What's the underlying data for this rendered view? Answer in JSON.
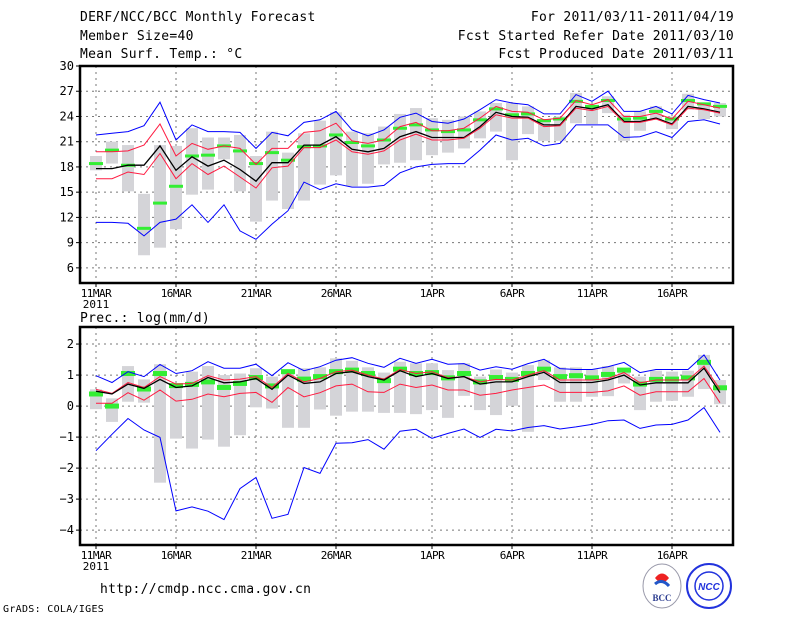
{
  "header": {
    "title": "DERF/NCC/BCC Monthly Forecast",
    "member_size": "Member Size=40",
    "variable": "Mean Surf. Temp.: °C",
    "period": "For 2011/03/11-2011/04/19",
    "start_date": "Fcst Started Refer Date 2011/03/10",
    "produced_date": "Fcst Produced Date 2011/03/11"
  },
  "footer": {
    "url": "http://cmdp.ncc.cma.gov.cn",
    "credit": "GrADS: COLA/IGES",
    "logos": [
      "BCC",
      "NCC"
    ]
  },
  "colors": {
    "blue": "#0000ff",
    "red": "#ff1a40",
    "black": "#000000",
    "green": "#33ee33",
    "gray": "#d4d4d8"
  },
  "chart_data": [
    {
      "type": "line",
      "title": "Mean Surf. Temp.: °C",
      "xlabel": "",
      "ylabel": "",
      "x_start": "2011-03-11",
      "days": 40,
      "xticks": [
        {
          "i": 0,
          "label": "11MAR"
        },
        {
          "i": 5,
          "label": "16MAR"
        },
        {
          "i": 10,
          "label": "21MAR"
        },
        {
          "i": 15,
          "label": "26MAR"
        },
        {
          "i": 21,
          "label": "1APR"
        },
        {
          "i": 26,
          "label": "6APR"
        },
        {
          "i": 31,
          "label": "11APR"
        },
        {
          "i": 36,
          "label": "16APR"
        }
      ],
      "year_label": "2011",
      "yticks": [
        6,
        9,
        12,
        15,
        18,
        21,
        24,
        27,
        30
      ],
      "ylim": [
        4.2,
        30
      ],
      "grid": true,
      "series": [
        {
          "name": "max",
          "color": "blue",
          "values": [
            21.8,
            22.0,
            22.2,
            22.9,
            25.7,
            21.2,
            23.0,
            22.2,
            22.2,
            22.1,
            20.2,
            22.1,
            21.7,
            23.3,
            23.6,
            24.6,
            22.4,
            21.7,
            22.4,
            23.9,
            24.4,
            23.4,
            23.2,
            23.7,
            24.8,
            26.0,
            25.6,
            25.4,
            24.3,
            24.3,
            26.6,
            25.8,
            27.0,
            24.6,
            24.6,
            25.2,
            24.3,
            26.5,
            26.0,
            25.6
          ]
        },
        {
          "name": "upper",
          "color": "red",
          "values": [
            19.8,
            19.8,
            19.9,
            20.6,
            23.1,
            19.3,
            20.8,
            20.1,
            20.5,
            20.2,
            18.3,
            20.2,
            20.2,
            22.1,
            22.3,
            23.2,
            21.1,
            20.8,
            21.2,
            22.8,
            23.3,
            22.3,
            22.3,
            22.6,
            23.8,
            25.2,
            24.6,
            24.5,
            23.6,
            23.8,
            25.9,
            25.4,
            26.0,
            24.0,
            24.0,
            24.4,
            23.7,
            25.8,
            25.4,
            25.0
          ]
        },
        {
          "name": "mean",
          "color": "black",
          "values": [
            17.8,
            17.8,
            18.2,
            18.2,
            20.5,
            17.6,
            19.2,
            18.1,
            18.8,
            17.7,
            16.3,
            18.5,
            18.5,
            20.6,
            20.6,
            21.6,
            20.1,
            19.8,
            20.2,
            21.6,
            22.2,
            21.5,
            21.5,
            21.5,
            22.8,
            24.5,
            24.0,
            23.9,
            23.0,
            23.0,
            25.2,
            24.9,
            25.4,
            23.4,
            23.4,
            23.8,
            23.1,
            25.2,
            24.9,
            24.5
          ]
        },
        {
          "name": "lower",
          "color": "red",
          "values": [
            16.6,
            16.6,
            17.4,
            17.1,
            19.6,
            16.6,
            18.4,
            17.1,
            18.1,
            16.8,
            15.5,
            17.9,
            18.1,
            20.3,
            20.3,
            21.2,
            19.8,
            19.5,
            19.9,
            21.2,
            21.9,
            21.2,
            21.2,
            21.4,
            22.6,
            24.2,
            23.8,
            23.8,
            22.8,
            22.9,
            25.0,
            24.7,
            25.2,
            23.3,
            23.3,
            23.7,
            23.0,
            25.0,
            24.8,
            24.4
          ]
        },
        {
          "name": "min",
          "color": "blue",
          "values": [
            11.4,
            11.4,
            11.3,
            9.8,
            11.4,
            11.8,
            13.5,
            11.4,
            13.5,
            10.4,
            9.4,
            11.2,
            12.8,
            16.2,
            15.3,
            16.0,
            15.6,
            15.6,
            15.8,
            17.3,
            18.0,
            18.3,
            18.4,
            18.4,
            20.0,
            21.8,
            21.2,
            21.4,
            20.5,
            20.8,
            23.0,
            23.0,
            23.0,
            21.5,
            21.6,
            22.2,
            21.5,
            23.4,
            23.6,
            23.1
          ]
        }
      ],
      "markers": {
        "name": "observed",
        "color": "green",
        "values": [
          18.4,
          20.0,
          18.2,
          10.7,
          13.7,
          15.7,
          19.3,
          19.4,
          20.5,
          19.9,
          18.4,
          19.7,
          18.8,
          20.4,
          20.5,
          21.8,
          20.9,
          20.5,
          21.2,
          22.6,
          23.0,
          22.4,
          22.2,
          22.4,
          23.6,
          24.9,
          24.2,
          24.3,
          23.5,
          23.7,
          25.8,
          25.2,
          25.9,
          23.7,
          23.8,
          24.6,
          23.7,
          25.9,
          25.5,
          25.2
        ]
      },
      "ranges": {
        "name": "spread",
        "color": "gray",
        "values": [
          [
            17.6,
            19.3
          ],
          [
            18.4,
            21.0
          ],
          [
            15.1,
            20.6
          ],
          [
            7.5,
            14.8
          ],
          [
            8.4,
            20.6
          ],
          [
            10.6,
            20.5
          ],
          [
            14.7,
            22.6
          ],
          [
            15.3,
            21.5
          ],
          [
            18.9,
            21.5
          ],
          [
            15.1,
            21.8
          ],
          [
            11.5,
            19.3
          ],
          [
            14.0,
            22.2
          ],
          [
            13.0,
            19.7
          ],
          [
            14.0,
            22.0
          ],
          [
            15.9,
            23.5
          ],
          [
            17.0,
            24.5
          ],
          [
            15.7,
            22.2
          ],
          [
            16.0,
            22.0
          ],
          [
            18.3,
            22.8
          ],
          [
            18.5,
            24.3
          ],
          [
            18.8,
            25.0
          ],
          [
            19.4,
            23.8
          ],
          [
            19.7,
            23.6
          ],
          [
            20.2,
            24.0
          ],
          [
            21.4,
            24.6
          ],
          [
            22.2,
            25.6
          ],
          [
            18.8,
            25.6
          ],
          [
            21.9,
            25.2
          ],
          [
            21.1,
            23.7
          ],
          [
            21.1,
            24.0
          ],
          [
            23.2,
            26.8
          ],
          [
            23.1,
            25.2
          ],
          [
            24.4,
            26.4
          ],
          [
            21.1,
            24.2
          ],
          [
            22.3,
            24.6
          ],
          [
            23.6,
            25.2
          ],
          [
            22.5,
            24.0
          ],
          [
            24.8,
            26.7
          ],
          [
            23.7,
            25.6
          ],
          [
            24.0,
            25.6
          ]
        ]
      }
    },
    {
      "type": "line",
      "title": "Prec.: log(mm/d)",
      "xlabel": "",
      "ylabel": "",
      "x_start": "2011-03-11",
      "days": 40,
      "xticks": [
        {
          "i": 0,
          "label": "11MAR"
        },
        {
          "i": 5,
          "label": "16MAR"
        },
        {
          "i": 10,
          "label": "21MAR"
        },
        {
          "i": 15,
          "label": "26MAR"
        },
        {
          "i": 21,
          "label": "1APR"
        },
        {
          "i": 26,
          "label": "6APR"
        },
        {
          "i": 31,
          "label": "11APR"
        },
        {
          "i": 36,
          "label": "16APR"
        }
      ],
      "year_label": "2011",
      "yticks": [
        -4,
        -3,
        -2,
        -1,
        0,
        1,
        2
      ],
      "ylim": [
        -4.48,
        2.55
      ],
      "grid": true,
      "series": [
        {
          "name": "max",
          "color": "blue",
          "values": [
            0.98,
            0.76,
            1.11,
            0.95,
            1.34,
            1.05,
            1.14,
            1.43,
            1.22,
            1.22,
            1.35,
            0.98,
            1.4,
            1.14,
            1.27,
            1.48,
            1.56,
            1.38,
            1.25,
            1.54,
            1.38,
            1.51,
            1.35,
            1.37,
            1.16,
            1.27,
            1.19,
            1.37,
            1.51,
            1.21,
            1.18,
            1.18,
            1.27,
            1.41,
            1.08,
            1.18,
            1.18,
            1.18,
            1.65,
            0.84
          ]
        },
        {
          "name": "upper",
          "color": "red",
          "values": [
            0.54,
            0.41,
            0.76,
            0.6,
            0.95,
            0.71,
            0.73,
            0.98,
            0.84,
            0.87,
            0.95,
            0.6,
            1.05,
            0.78,
            0.89,
            1.11,
            1.16,
            1.0,
            0.87,
            1.18,
            1.05,
            1.11,
            0.91,
            0.95,
            0.78,
            0.86,
            0.84,
            1.0,
            1.14,
            0.84,
            0.84,
            0.84,
            0.89,
            1.08,
            0.75,
            0.84,
            0.84,
            0.84,
            1.29,
            0.54
          ]
        },
        {
          "name": "mean",
          "color": "black",
          "values": [
            0.48,
            0.39,
            0.71,
            0.57,
            0.86,
            0.6,
            0.65,
            0.92,
            0.75,
            0.78,
            0.89,
            0.54,
            1.0,
            0.73,
            0.78,
            1.05,
            1.11,
            0.95,
            0.84,
            1.14,
            0.95,
            1.05,
            0.89,
            0.95,
            0.71,
            0.78,
            0.78,
            0.95,
            1.09,
            0.76,
            0.76,
            0.76,
            0.84,
            1.0,
            0.68,
            0.75,
            0.75,
            0.75,
            1.22,
            0.43
          ]
        },
        {
          "name": "lower",
          "color": "red",
          "values": [
            0.09,
            0.09,
            0.43,
            0.19,
            0.52,
            0.16,
            0.22,
            0.39,
            0.3,
            0.41,
            0.44,
            0.12,
            0.6,
            0.3,
            0.43,
            0.65,
            0.71,
            0.46,
            0.44,
            0.71,
            0.6,
            0.68,
            0.52,
            0.52,
            0.35,
            0.41,
            0.52,
            0.6,
            0.68,
            0.44,
            0.44,
            0.44,
            0.49,
            0.65,
            0.35,
            0.46,
            0.46,
            0.46,
            0.89,
            0.11
          ]
        },
        {
          "name": "min",
          "color": "blue",
          "values": [
            -1.44,
            -0.91,
            -0.4,
            -0.77,
            -1.01,
            -3.38,
            -3.25,
            -3.39,
            -3.66,
            -2.66,
            -2.3,
            -3.62,
            -3.49,
            -1.98,
            -2.17,
            -1.2,
            -1.18,
            -1.08,
            -1.39,
            -0.81,
            -0.75,
            -1.04,
            -0.88,
            -0.74,
            -1.01,
            -0.75,
            -0.8,
            -0.69,
            -0.63,
            -0.74,
            -0.67,
            -0.59,
            -0.47,
            -0.45,
            -0.72,
            -0.61,
            -0.59,
            -0.45,
            -0.05,
            -0.85
          ]
        }
      ],
      "markers": {
        "name": "observed",
        "color": "green",
        "values": [
          0.39,
          0.0,
          1.05,
          0.55,
          1.05,
          0.66,
          0.7,
          0.78,
          0.6,
          0.73,
          0.92,
          0.65,
          1.11,
          0.87,
          0.95,
          1.11,
          1.16,
          1.05,
          0.82,
          1.19,
          1.05,
          1.08,
          0.91,
          1.05,
          0.78,
          0.92,
          0.86,
          1.05,
          1.19,
          0.95,
          0.98,
          0.91,
          1.02,
          1.16,
          0.71,
          0.86,
          0.87,
          0.91,
          1.41,
          0.59
        ]
      },
      "ranges": {
        "name": "spread",
        "color": "gray",
        "values": [
          [
            -0.1,
            0.54
          ],
          [
            -0.51,
            0.25
          ],
          [
            0.14,
            1.29
          ],
          [
            0.11,
            0.86
          ],
          [
            -2.47,
            1.35
          ],
          [
            -1.05,
            0.73
          ],
          [
            -1.37,
            1.11
          ],
          [
            -1.08,
            1.29
          ],
          [
            -1.31,
            1.0
          ],
          [
            -0.94,
            1.05
          ],
          [
            -0.04,
            1.22
          ],
          [
            -0.08,
            0.95
          ],
          [
            -0.7,
            1.16
          ],
          [
            -0.7,
            1.22
          ],
          [
            -0.11,
            1.25
          ],
          [
            -0.31,
            1.54
          ],
          [
            -0.18,
            1.46
          ],
          [
            -0.18,
            1.25
          ],
          [
            -0.22,
            1.08
          ],
          [
            -0.22,
            1.43
          ],
          [
            -0.26,
            1.38
          ],
          [
            -0.13,
            1.38
          ],
          [
            -0.38,
            1.16
          ],
          [
            0.33,
            1.38
          ],
          [
            -0.13,
            0.95
          ],
          [
            -0.29,
            1.18
          ],
          [
            0.01,
            1.08
          ],
          [
            -0.83,
            1.32
          ],
          [
            0.84,
            1.48
          ],
          [
            0.14,
            1.25
          ],
          [
            0.14,
            1.25
          ],
          [
            0.3,
            1.18
          ],
          [
            0.32,
            1.29
          ],
          [
            0.73,
            1.16
          ],
          [
            -0.13,
            0.95
          ],
          [
            0.14,
            1.14
          ],
          [
            0.17,
            1.11
          ],
          [
            0.3,
            1.14
          ],
          [
            0.55,
            1.65
          ],
          [
            0.06,
            0.84
          ]
        ]
      }
    }
  ]
}
